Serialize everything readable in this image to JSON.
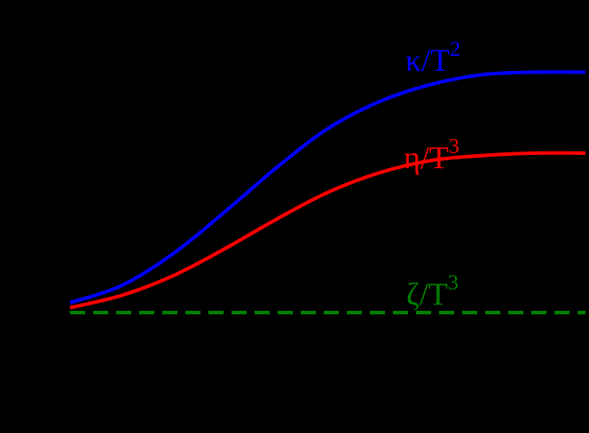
{
  "chart_data": {
    "type": "line",
    "title": "",
    "xlabel": "",
    "ylabel": "",
    "grid": false,
    "legend_position": "inline labels near curves",
    "x": [
      0,
      0.1,
      0.2,
      0.3,
      0.4,
      0.5,
      0.6,
      0.7,
      0.8,
      0.9,
      1.0
    ],
    "xlim": [
      0,
      1
    ],
    "ylim": [
      0,
      1
    ],
    "series": [
      {
        "name": "κ/T²",
        "color": "#0000ff",
        "style": "solid",
        "values": [
          0.04,
          0.11,
          0.24,
          0.41,
          0.59,
          0.75,
          0.86,
          0.93,
          0.97,
          0.98,
          0.98
        ]
      },
      {
        "name": "η/T³",
        "color": "#ff0000",
        "style": "solid",
        "values": [
          0.02,
          0.07,
          0.15,
          0.26,
          0.38,
          0.49,
          0.57,
          0.62,
          0.64,
          0.65,
          0.65
        ]
      },
      {
        "name": "ζ/T³",
        "color": "#008000",
        "style": "dashed",
        "values": [
          0,
          0,
          0,
          0,
          0,
          0,
          0,
          0,
          0,
          0,
          0
        ]
      }
    ],
    "annotations": [
      {
        "text": "κ/T",
        "sup": "2",
        "color": "#0000ff"
      },
      {
        "text": "η/T",
        "sup": "3",
        "color": "#ff0000"
      },
      {
        "text": "ζ/T",
        "sup": "3",
        "color": "#008000"
      }
    ]
  },
  "labels": {
    "kappa": {
      "base": "κ/T",
      "sup": "2"
    },
    "eta": {
      "base": "η/T",
      "sup": "3"
    },
    "zeta": {
      "base": "ζ/T",
      "sup": "3"
    }
  },
  "colors": {
    "background": "#000000",
    "kappa": "#0000ff",
    "eta": "#ff0000",
    "zeta": "#008000"
  }
}
